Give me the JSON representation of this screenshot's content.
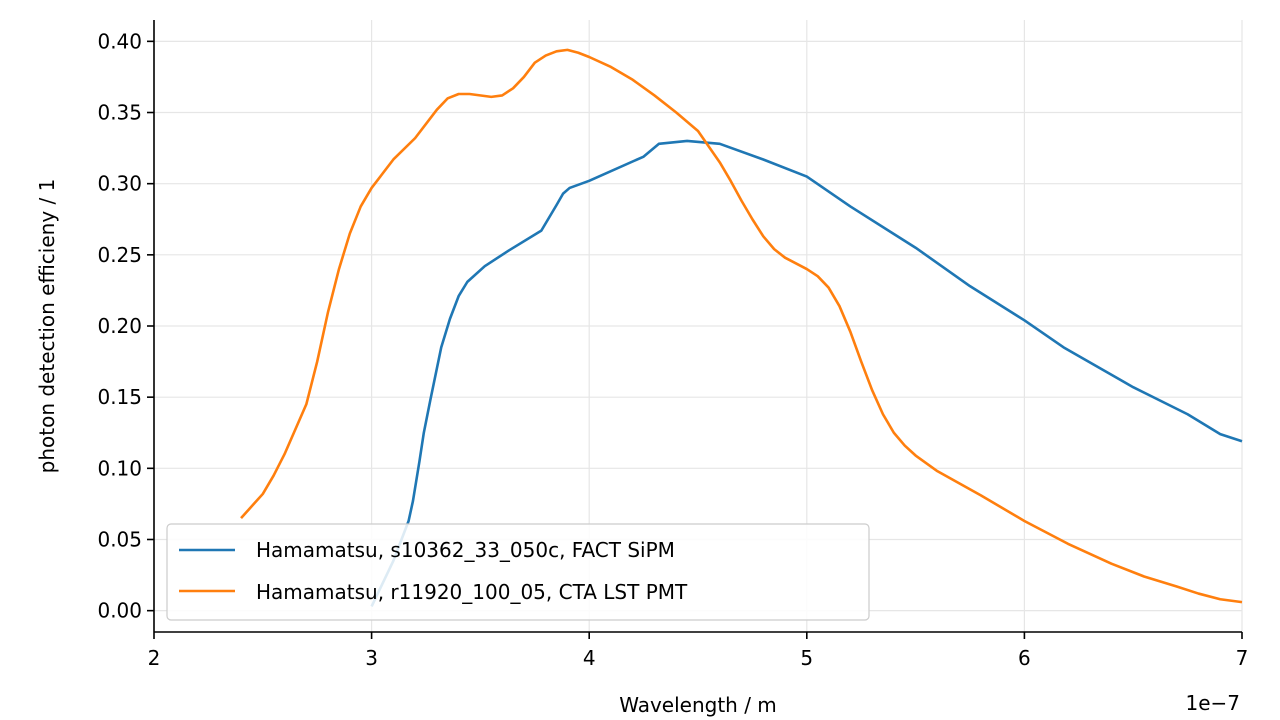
{
  "chart_data": {
    "type": "line",
    "title": "",
    "xlabel": "Wavelength / m",
    "ylabel": "photon detection efficieny / 1",
    "x_offset_text": "1e−7",
    "xlim": [
      2e-07,
      7e-07
    ],
    "ylim": [
      -0.015,
      0.415
    ],
    "x_ticks": [
      2e-07,
      3e-07,
      4e-07,
      5e-07,
      6e-07,
      7e-07
    ],
    "x_tick_labels": [
      "2",
      "3",
      "4",
      "5",
      "6",
      "7"
    ],
    "y_ticks": [
      0.0,
      0.05,
      0.1,
      0.15,
      0.2,
      0.25,
      0.3,
      0.35,
      0.4
    ],
    "y_tick_labels": [
      "0.00",
      "0.05",
      "0.10",
      "0.15",
      "0.20",
      "0.25",
      "0.30",
      "0.35",
      "0.40"
    ],
    "grid": true,
    "legend_position": "lower-left",
    "series": [
      {
        "name": "Hamamatsu, s10362_33_050c, FACT SiPM",
        "color": "#1f77b4",
        "points": [
          [
            3e-07,
            0.003
          ],
          [
            3.1e-07,
            0.035
          ],
          [
            3.17e-07,
            0.063
          ],
          [
            3.19e-07,
            0.077
          ],
          [
            3.22e-07,
            0.105
          ],
          [
            3.24e-07,
            0.125
          ],
          [
            3.27e-07,
            0.148
          ],
          [
            3.32e-07,
            0.185
          ],
          [
            3.36e-07,
            0.205
          ],
          [
            3.4e-07,
            0.221
          ],
          [
            3.44e-07,
            0.231
          ],
          [
            3.52e-07,
            0.242
          ],
          [
            3.63e-07,
            0.253
          ],
          [
            3.78e-07,
            0.267
          ],
          [
            3.85e-07,
            0.285
          ],
          [
            3.88e-07,
            0.293
          ],
          [
            3.91e-07,
            0.297
          ],
          [
            4e-07,
            0.302
          ],
          [
            4.25e-07,
            0.319
          ],
          [
            4.32e-07,
            0.328
          ],
          [
            4.45e-07,
            0.33
          ],
          [
            4.6e-07,
            0.328
          ],
          [
            4.8e-07,
            0.317
          ],
          [
            5e-07,
            0.305
          ],
          [
            5.2e-07,
            0.284
          ],
          [
            5.5e-07,
            0.255
          ],
          [
            5.75e-07,
            0.228
          ],
          [
            6e-07,
            0.204
          ],
          [
            6.18e-07,
            0.185
          ],
          [
            6.5e-07,
            0.157
          ],
          [
            6.75e-07,
            0.138
          ],
          [
            6.9e-07,
            0.124
          ],
          [
            7e-07,
            0.119
          ]
        ]
      },
      {
        "name": "Hamamatsu, r11920_100_05, CTA LST PMT",
        "color": "#ff7f0e",
        "points": [
          [
            2.4e-07,
            0.065
          ],
          [
            2.5e-07,
            0.082
          ],
          [
            2.55e-07,
            0.095
          ],
          [
            2.6e-07,
            0.11
          ],
          [
            2.7e-07,
            0.145
          ],
          [
            2.75e-07,
            0.175
          ],
          [
            2.8e-07,
            0.21
          ],
          [
            2.85e-07,
            0.24
          ],
          [
            2.9e-07,
            0.265
          ],
          [
            2.95e-07,
            0.284
          ],
          [
            3e-07,
            0.297
          ],
          [
            3.1e-07,
            0.317
          ],
          [
            3.2e-07,
            0.332
          ],
          [
            3.3e-07,
            0.352
          ],
          [
            3.35e-07,
            0.36
          ],
          [
            3.4e-07,
            0.363
          ],
          [
            3.45e-07,
            0.363
          ],
          [
            3.55e-07,
            0.361
          ],
          [
            3.6e-07,
            0.362
          ],
          [
            3.65e-07,
            0.367
          ],
          [
            3.7e-07,
            0.375
          ],
          [
            3.75e-07,
            0.385
          ],
          [
            3.8e-07,
            0.39
          ],
          [
            3.85e-07,
            0.393
          ],
          [
            3.9e-07,
            0.394
          ],
          [
            3.95e-07,
            0.392
          ],
          [
            4e-07,
            0.389
          ],
          [
            4.1e-07,
            0.382
          ],
          [
            4.2e-07,
            0.373
          ],
          [
            4.3e-07,
            0.362
          ],
          [
            4.4e-07,
            0.35
          ],
          [
            4.5e-07,
            0.337
          ],
          [
            4.6e-07,
            0.315
          ],
          [
            4.65e-07,
            0.302
          ],
          [
            4.7e-07,
            0.288
          ],
          [
            4.75e-07,
            0.275
          ],
          [
            4.8e-07,
            0.263
          ],
          [
            4.85e-07,
            0.254
          ],
          [
            4.9e-07,
            0.248
          ],
          [
            5e-07,
            0.24
          ],
          [
            5.05e-07,
            0.235
          ],
          [
            5.1e-07,
            0.227
          ],
          [
            5.15e-07,
            0.214
          ],
          [
            5.2e-07,
            0.196
          ],
          [
            5.25e-07,
            0.175
          ],
          [
            5.3e-07,
            0.155
          ],
          [
            5.35e-07,
            0.138
          ],
          [
            5.4e-07,
            0.125
          ],
          [
            5.45e-07,
            0.116
          ],
          [
            5.5e-07,
            0.109
          ],
          [
            5.6e-07,
            0.098
          ],
          [
            5.8e-07,
            0.081
          ],
          [
            6e-07,
            0.063
          ],
          [
            6.2e-07,
            0.047
          ],
          [
            6.4e-07,
            0.033
          ],
          [
            6.55e-07,
            0.024
          ],
          [
            6.7e-07,
            0.017
          ],
          [
            6.8e-07,
            0.012
          ],
          [
            6.9e-07,
            0.008
          ],
          [
            7e-07,
            0.006
          ]
        ]
      }
    ]
  }
}
